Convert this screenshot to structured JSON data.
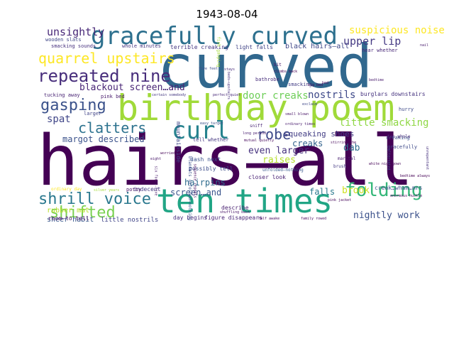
{
  "title": "1943-08-04",
  "words": [
    {
      "text": "hairs—all",
      "color": "#440154",
      "weight": "normal",
      "rotate": 0
    },
    {
      "text": "curved",
      "color": "#31688e",
      "weight": "normal",
      "rotate": 0
    },
    {
      "text": "birthday poem",
      "color": "#a0da39",
      "weight": "normal",
      "rotate": 0
    },
    {
      "text": "ten times",
      "color": "#21a585",
      "weight": "normal",
      "rotate": 0
    },
    {
      "text": "gracefully curved",
      "color": "#2d708e",
      "weight": "normal",
      "rotate": 0
    },
    {
      "text": "curl",
      "color": "#26828e",
      "weight": "normal",
      "rotate": 0
    },
    {
      "text": "repeated nine",
      "color": "#472d7b",
      "weight": "normal",
      "rotate": 0
    },
    {
      "text": "quarrel upstairs",
      "color": "#fde725",
      "weight": "normal",
      "rotate": 0
    },
    {
      "text": "gasping",
      "color": "#3b528b",
      "weight": "normal",
      "rotate": 0
    },
    {
      "text": "shrill voice",
      "color": "#2a788e",
      "weight": "normal",
      "rotate": 0
    },
    {
      "text": "shifted",
      "color": "#7ad151",
      "weight": "normal",
      "rotate": 0
    },
    {
      "text": "folding",
      "color": "#35b779",
      "weight": "normal",
      "rotate": 0
    },
    {
      "text": "clatters",
      "color": "#2c728e",
      "weight": "normal",
      "rotate": 0
    },
    {
      "text": "robe",
      "color": "#3e4a89",
      "weight": "normal",
      "rotate": 0
    },
    {
      "text": "unsightly",
      "color": "#482878",
      "weight": "normal",
      "rotate": 0
    },
    {
      "text": "suspicious noise",
      "color": "#fde725",
      "weight": "normal",
      "rotate": 0
    },
    {
      "text": "upper lip",
      "color": "#443983",
      "weight": "normal",
      "rotate": 0
    },
    {
      "text": "blackout screen…and",
      "color": "#482475",
      "weight": "normal",
      "rotate": 0
    },
    {
      "text": "nostrils",
      "color": "#3e4989",
      "weight": "normal",
      "rotate": 0
    },
    {
      "text": "door creaks",
      "color": "#6ece58",
      "weight": "normal",
      "rotate": 0
    },
    {
      "text": "little smacking",
      "color": "#8fd744",
      "weight": "normal",
      "rotate": 0
    },
    {
      "text": "approximately three",
      "color": "#5ec962",
      "weight": "normal",
      "rotate": 90
    },
    {
      "text": "spat",
      "color": "#404688",
      "weight": "normal",
      "rotate": 0
    },
    {
      "text": "margot described",
      "color": "#3b528b",
      "weight": "normal",
      "rotate": 0
    },
    {
      "text": "even larger",
      "color": "#46327e",
      "weight": "normal",
      "rotate": 0
    },
    {
      "text": "raises",
      "color": "#b5de2b",
      "weight": "normal",
      "rotate": 0
    },
    {
      "text": "dab",
      "color": "#2e6e8e",
      "weight": "normal",
      "rotate": 0
    },
    {
      "text": "creaks",
      "color": "#33638d",
      "weight": "normal",
      "rotate": 0
    },
    {
      "text": "squeaking shoes",
      "color": "#433e85",
      "weight": "normal",
      "rotate": 0
    },
    {
      "text": "hairpins",
      "color": "#2f6c8e",
      "weight": "normal",
      "rotate": 0
    },
    {
      "text": "screen…and",
      "color": "#3a548c",
      "weight": "normal",
      "rotate": 0
    },
    {
      "text": "falls",
      "color": "#29798e",
      "weight": "normal",
      "rotate": 0
    },
    {
      "text": "brook",
      "color": "#cde11d",
      "weight": "normal",
      "rotate": 0
    },
    {
      "text": "nightly work",
      "color": "#3b518b",
      "weight": "normal",
      "rotate": 0
    },
    {
      "text": "rubber mat",
      "color": "#b8de29",
      "weight": "normal",
      "rotate": 0
    },
    {
      "text": "sheer habit",
      "color": "#38588c",
      "weight": "normal",
      "rotate": 0
    },
    {
      "text": "little nostrils",
      "color": "#404588",
      "weight": "normal",
      "rotate": 0
    },
    {
      "text": "black hairs—all",
      "color": "#3f4788",
      "weight": "normal",
      "rotate": 0
    },
    {
      "text": "terrible creaking",
      "color": "#453781",
      "weight": "normal",
      "rotate": 0
    },
    {
      "text": "light falls",
      "color": "#414487",
      "weight": "normal",
      "rotate": 0
    },
    {
      "text": "burglars downstairs",
      "color": "#46337f",
      "weight": "normal",
      "rotate": 0
    },
    {
      "text": "creak…wham…mrs",
      "color": "#3d4e8a",
      "weight": "normal",
      "rotate": 0
    },
    {
      "text": "mountainside",
      "color": "#3f4788",
      "weight": "normal",
      "rotate": 90
    },
    {
      "text": "possibly tell",
      "color": "#3d4d8a",
      "weight": "normal",
      "rotate": 0
    },
    {
      "text": "dash next",
      "color": "#3b518b",
      "weight": "normal",
      "rotate": 0
    },
    {
      "text": "tell whether",
      "color": "#453781",
      "weight": "normal",
      "rotate": 0
    },
    {
      "text": "indecent",
      "color": "#453882",
      "weight": "normal",
      "rotate": 0
    },
    {
      "text": "closer look",
      "color": "#482173",
      "weight": "normal",
      "rotate": 0
    },
    {
      "text": "day begins",
      "color": "#472f7d",
      "weight": "normal",
      "rotate": 0
    },
    {
      "text": "figure disappears",
      "color": "#482576",
      "weight": "normal",
      "rotate": 0
    },
    {
      "text": "room—to tell",
      "color": "#471063",
      "weight": "normal",
      "rotate": 0
    },
    {
      "text": "describe",
      "color": "#482071",
      "weight": "normal",
      "rotate": 0
    },
    {
      "text": "whole minutes",
      "color": "#453581",
      "weight": "normal",
      "rotate": 0
    },
    {
      "text": "smacking sounds",
      "color": "#46307e",
      "weight": "normal",
      "rotate": 0
    },
    {
      "text": "wooden slats",
      "color": "#3f4788",
      "weight": "normal",
      "rotate": 0
    },
    {
      "text": "tucking away",
      "color": "#482374",
      "weight": "normal",
      "rotate": 0
    },
    {
      "text": "pink bed",
      "color": "#481a6c",
      "weight": "normal",
      "rotate": 0
    },
    {
      "text": "hurry",
      "color": "#3e4a89",
      "weight": "normal",
      "rotate": 0
    },
    {
      "text": "larger",
      "color": "#414487",
      "weight": "normal",
      "rotate": 0
    },
    {
      "text": "smacking",
      "color": "#433e85",
      "weight": "normal",
      "rotate": 0
    },
    {
      "text": "bathrobe",
      "color": "#472d7b",
      "weight": "normal",
      "rotate": 0
    },
    {
      "text": "hear whether",
      "color": "#482878",
      "weight": "normal",
      "rotate": 0
    },
    {
      "text": "gracefully",
      "color": "#3e4989",
      "weight": "normal",
      "rotate": 0
    },
    {
      "text": "creaking",
      "color": "#3b528b",
      "weight": "normal",
      "rotate": 0
    },
    {
      "text": "ten whole",
      "color": "#472c7a",
      "weight": "normal",
      "rotate": 0
    },
    {
      "text": "marital",
      "color": "#481f70",
      "weight": "normal",
      "rotate": 0
    },
    {
      "text": "brush",
      "color": "#443a83",
      "weight": "normal",
      "rotate": 0
    },
    {
      "text": "unfolded—nothing",
      "color": "#38598c",
      "weight": "normal",
      "rotate": 0
    },
    {
      "text": "blankets unfolded—nothing",
      "color": "#3b528b",
      "weight": "normal",
      "rotate": 90
    },
    {
      "text": "sniff",
      "color": "#482475",
      "weight": "normal",
      "rotate": 0
    },
    {
      "text": "potty",
      "color": "#471164",
      "weight": "normal",
      "rotate": 0
    },
    {
      "text": "bit",
      "color": "#481769",
      "weight": "normal",
      "rotate": 0
    },
    {
      "text": "climbs back",
      "color": "#440154",
      "weight": "normal",
      "rotate": 0
    },
    {
      "text": "bed",
      "color": "#46085c",
      "weight": "normal",
      "rotate": 0
    },
    {
      "text": "big bed",
      "color": "#450559",
      "weight": "normal",
      "rotate": 0
    },
    {
      "text": "shuffling back",
      "color": "#481467",
      "weight": "normal",
      "rotate": 0
    },
    {
      "text": "half awake",
      "color": "#470e61",
      "weight": "normal",
      "rotate": 0
    },
    {
      "text": "family rowed",
      "color": "#46085c",
      "weight": "normal",
      "rotate": 0
    },
    {
      "text": "ordinary times",
      "color": "#481b6d",
      "weight": "normal",
      "rotate": 0
    },
    {
      "text": "enormous hustle",
      "color": "#450559",
      "weight": "normal",
      "rotate": 0
    },
    {
      "text": "bedtime always",
      "color": "#440154",
      "weight": "normal",
      "rotate": 0
    },
    {
      "text": "white nightgown",
      "color": "#450457",
      "weight": "normal",
      "rotate": 0
    },
    {
      "text": "pink jacket",
      "color": "#46075a",
      "weight": "normal",
      "rotate": 0
    },
    {
      "text": "sequence repeats",
      "color": "#470d60",
      "weight": "normal",
      "rotate": 90
    },
    {
      "text": "six forty-five",
      "color": "#481a6c",
      "weight": "normal",
      "rotate": 90
    },
    {
      "text": "beds—upstairs",
      "color": "#472f7d",
      "weight": "normal",
      "rotate": 90
    },
    {
      "text": "fish gasping",
      "color": "#a5db36",
      "weight": "normal",
      "rotate": 90
    },
    {
      "text": "unrepentant",
      "color": "#46307e",
      "weight": "normal",
      "rotate": 90
    },
    {
      "text": "alternated",
      "color": "#3a548c",
      "weight": "normal",
      "rotate": 90
    },
    {
      "text": "five feet",
      "color": "#3e4c8a",
      "weight": "normal",
      "rotate": 0
    },
    {
      "text": "stays",
      "color": "#472a7a",
      "weight": "normal",
      "rotate": 0
    },
    {
      "text": "nail",
      "color": "#481b6d",
      "weight": "normal",
      "rotate": 0
    },
    {
      "text": "perfect quiet",
      "color": "#482979",
      "weight": "normal",
      "rotate": 0
    },
    {
      "text": "certain somebody",
      "color": "#453882",
      "weight": "normal",
      "rotate": 0
    },
    {
      "text": "long period",
      "color": "#481f70",
      "weight": "normal",
      "rotate": 0
    },
    {
      "text": "mutual quietly",
      "color": "#46085c",
      "weight": "normal",
      "rotate": 0
    },
    {
      "text": "small blown",
      "color": "#481467",
      "weight": "normal",
      "rotate": 0
    },
    {
      "text": "ordinary day",
      "color": "#fde725",
      "weight": "normal",
      "rotate": 0
    },
    {
      "text": "eight",
      "color": "#481769",
      "weight": "normal",
      "rotate": 0
    },
    {
      "text": "easy target",
      "color": "#3b528b",
      "weight": "normal",
      "rotate": 0
    },
    {
      "text": "worried",
      "color": "#450457",
      "weight": "normal",
      "rotate": 0
    },
    {
      "text": "stirring the",
      "color": "#46075a",
      "weight": "normal",
      "rotate": 0
    },
    {
      "text": "bedtime",
      "color": "#481a6c",
      "weight": "normal",
      "rotate": 0
    },
    {
      "text": "silver years",
      "color": "#a5db36",
      "weight": "normal",
      "rotate": 0
    },
    {
      "text": "exclaim",
      "color": "#3f4788",
      "weight": "normal",
      "rotate": 0
    }
  ]
}
